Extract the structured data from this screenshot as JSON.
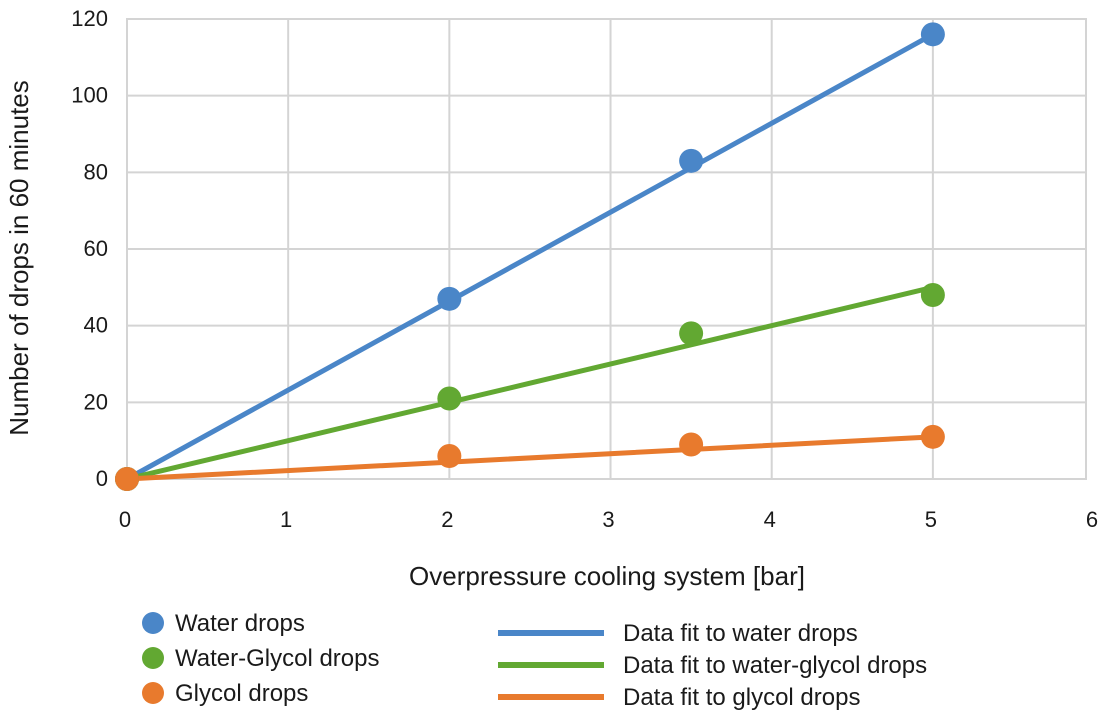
{
  "chart_data": {
    "type": "line",
    "title": "",
    "xlabel": "Overpressure cooling system [bar]",
    "ylabel": "Number of drops in 60 minutes",
    "xlim": [
      0,
      6
    ],
    "ylim": [
      0,
      120
    ],
    "x_ticks": [
      "0",
      "1",
      "2",
      "3",
      "4",
      "5",
      "6"
    ],
    "y_ticks": [
      "0",
      "20",
      "40",
      "60",
      "80",
      "100",
      "120"
    ],
    "grid": true,
    "legend_position": "bottom",
    "series": [
      {
        "name": "Water drops",
        "kind": "scatter",
        "color": "#4a86c8",
        "x": [
          0,
          2,
          3.5,
          5
        ],
        "y": [
          0,
          47,
          83,
          116
        ]
      },
      {
        "name": "Water-Glycol drops",
        "kind": "scatter",
        "color": "#62a832",
        "x": [
          0,
          2,
          3.5,
          5
        ],
        "y": [
          0,
          21,
          38,
          48
        ]
      },
      {
        "name": "Glycol drops",
        "kind": "scatter",
        "color": "#e87a2d",
        "x": [
          0,
          2,
          3.5,
          5
        ],
        "y": [
          0,
          6,
          9,
          11
        ]
      },
      {
        "name": "Data fit to water drops",
        "kind": "line",
        "color": "#4a86c8",
        "x": [
          0,
          5
        ],
        "y": [
          0,
          116
        ]
      },
      {
        "name": "Data fit to water-glycol drops",
        "kind": "line",
        "color": "#62a832",
        "x": [
          0,
          5
        ],
        "y": [
          0,
          50
        ]
      },
      {
        "name": "Data fit to glycol drops",
        "kind": "line",
        "color": "#e87a2d",
        "x": [
          0,
          5
        ],
        "y": [
          0,
          11
        ]
      }
    ]
  }
}
